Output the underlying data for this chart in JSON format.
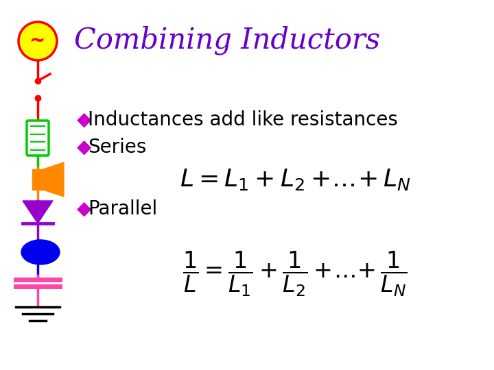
{
  "title": "Combining Inductors",
  "title_color": "#6600CC",
  "title_fontsize": 30,
  "title_style": "italic",
  "title_font": "serif",
  "bullet_color": "#CC00CC",
  "bullet_char": "◆",
  "text_color": "#000000",
  "text_fontsize": 20,
  "bullet1": "Inductances add like resistances",
  "bullet2": "Series",
  "bullet3": "Parallel",
  "bg_color": "#ffffff",
  "ac_source_fill": "#FFFF00",
  "ac_source_edge": "#FF0000",
  "wire_red": "#FF0000",
  "wire_green": "#00CC00",
  "wire_purple": "#9900CC",
  "wire_blue": "#0000EE",
  "wire_pink": "#FF44AA",
  "switch_color": "#FF0000",
  "inductor_fill": "#ffffff",
  "inductor_edge": "#00CC00",
  "speaker_color": "#FF8800",
  "diode_color": "#9900CC",
  "led_color": "#0000EE",
  "capacitor_color": "#FF44AA",
  "ground_color": "#000000"
}
